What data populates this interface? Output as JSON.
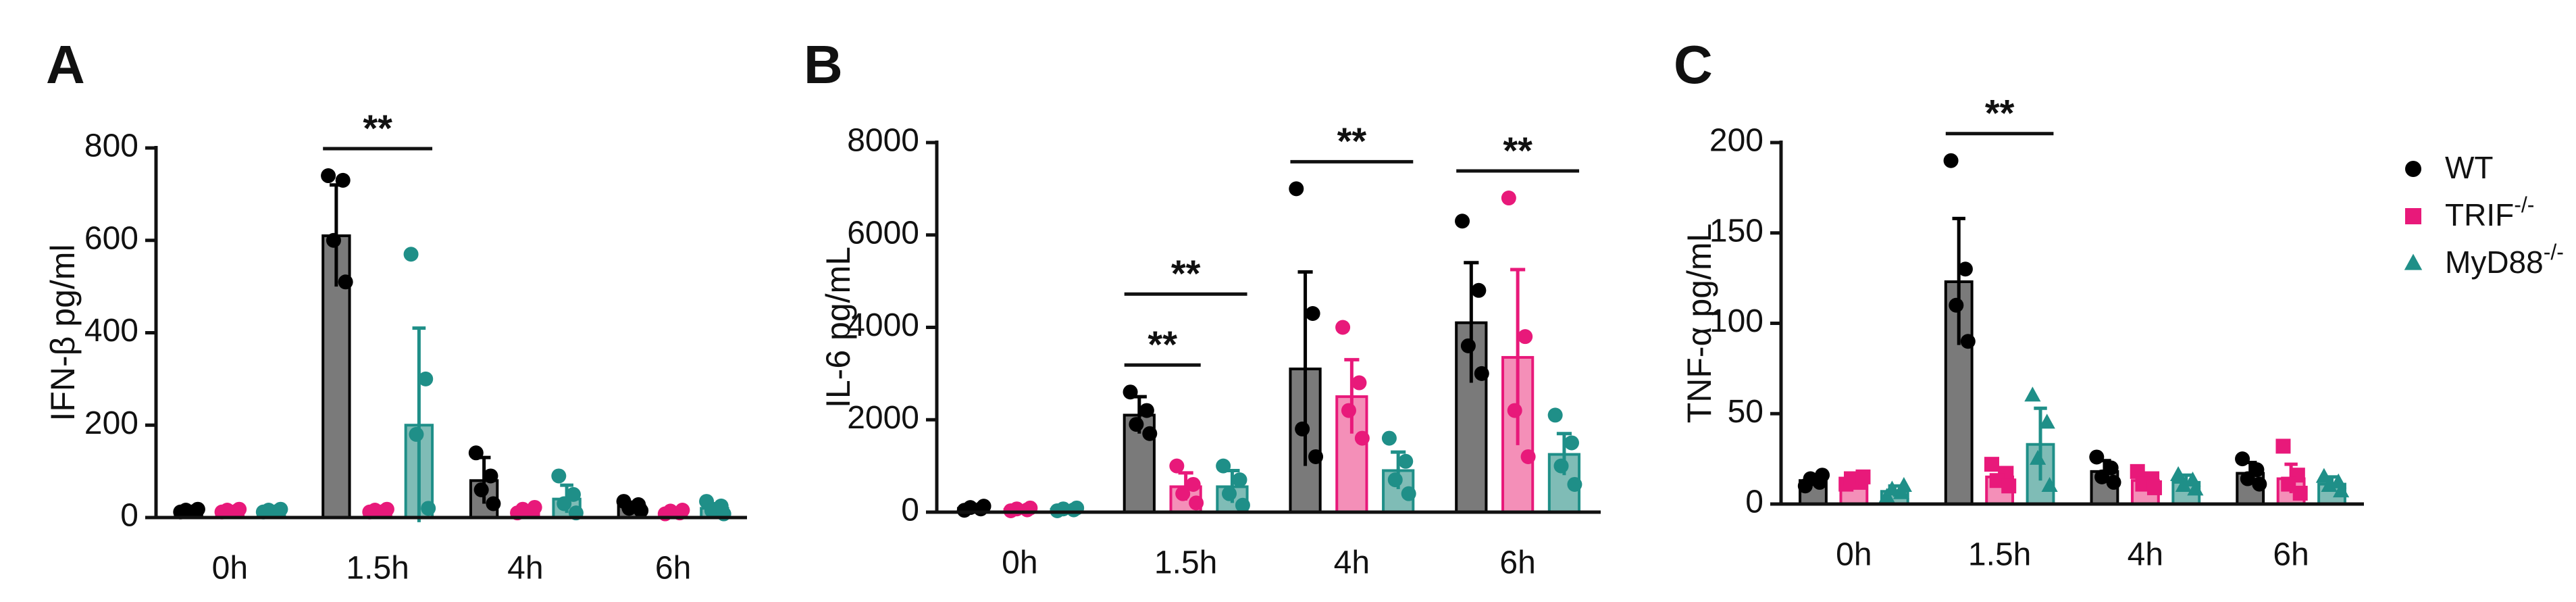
{
  "chart_data": [
    {
      "type": "bar",
      "panel": "A",
      "y_label": "IFN-β  pg/ml",
      "categories": [
        "0h",
        "1.5h",
        "4h",
        "6h"
      ],
      "ylim": [
        0,
        800
      ],
      "yticks": [
        0,
        200,
        400,
        600,
        800
      ],
      "series": [
        {
          "name": "WT",
          "color": "#000000",
          "fill": "#7a7a7a",
          "marker": "circle",
          "values": [
            15,
            610,
            80,
            25
          ],
          "errors": [
            3,
            110,
            50,
            8
          ],
          "points": [
            [
              12,
              14,
              16,
              18
            ],
            [
              740,
              730,
              600,
              510
            ],
            [
              140,
              90,
              60,
              30
            ],
            [
              35,
              28,
              20,
              15
            ]
          ]
        },
        {
          "name": "TRIF-/-",
          "color": "#e8197a",
          "fill": "#f48fb8",
          "marker": "circle",
          "values": [
            15,
            15,
            15,
            12
          ],
          "errors": [
            3,
            3,
            5,
            4
          ],
          "points": [
            [
              12,
              14,
              16,
              18
            ],
            [
              12,
              14,
              16,
              18
            ],
            [
              10,
              14,
              18,
              22
            ],
            [
              8,
              10,
              14,
              16
            ]
          ]
        },
        {
          "name": "MyD88-/-",
          "color": "#1f8f88",
          "fill": "#7fbcb6",
          "marker": "circle",
          "values": [
            15,
            200,
            40,
            20
          ],
          "errors": [
            3,
            210,
            30,
            10
          ],
          "points": [
            [
              12,
              14,
              16,
              18
            ],
            [
              570,
              300,
              180,
              20
            ],
            [
              90,
              50,
              30,
              10
            ],
            [
              35,
              25,
              15,
              8
            ]
          ]
        }
      ],
      "annotations": [
        {
          "text": "**",
          "category": 1,
          "series": [
            0,
            2
          ]
        }
      ]
    },
    {
      "type": "bar",
      "panel": "B",
      "y_label": "IL-6  pg/mL",
      "categories": [
        "0h",
        "1.5h",
        "4h",
        "6h"
      ],
      "ylim": [
        0,
        8000
      ],
      "yticks": [
        0,
        2000,
        4000,
        6000,
        8000
      ],
      "series": [
        {
          "name": "WT",
          "color": "#000000",
          "fill": "#7a7a7a",
          "marker": "circle",
          "values": [
            80,
            2100,
            3100,
            4100
          ],
          "errors": [
            40,
            400,
            2100,
            1300
          ],
          "points": [
            [
              40,
              70,
              100,
              130
            ],
            [
              2600,
              2200,
              1900,
              1700
            ],
            [
              7000,
              4300,
              1800,
              1200
            ],
            [
              6300,
              4800,
              3600,
              3000
            ]
          ]
        },
        {
          "name": "TRIF-/-",
          "color": "#e8197a",
          "fill": "#f48fb8",
          "marker": "circle",
          "values": [
            60,
            550,
            2500,
            3350
          ],
          "errors": [
            30,
            300,
            800,
            1900
          ],
          "points": [
            [
              30,
              50,
              70,
              90
            ],
            [
              1000,
              600,
              400,
              200
            ],
            [
              4000,
              2800,
              2200,
              1600
            ],
            [
              6800,
              3800,
              2200,
              1200
            ]
          ]
        },
        {
          "name": "MyD88-/-",
          "color": "#1f8f88",
          "fill": "#7fbcb6",
          "marker": "circle",
          "values": [
            60,
            550,
            900,
            1250
          ],
          "errors": [
            30,
            350,
            400,
            450
          ],
          "points": [
            [
              30,
              50,
              70,
              90
            ],
            [
              1000,
              700,
              400,
              150
            ],
            [
              1600,
              1100,
              700,
              400
            ],
            [
              2100,
              1500,
              1000,
              600
            ]
          ]
        }
      ],
      "annotations": [
        {
          "text": "**",
          "category": 1,
          "series": [
            0,
            1
          ]
        },
        {
          "text": "**",
          "category": 1,
          "series": [
            0,
            2
          ]
        },
        {
          "text": "**",
          "category": 2,
          "series": [
            0,
            2
          ]
        },
        {
          "text": "**",
          "category": 3,
          "series": [
            0,
            2
          ]
        }
      ]
    },
    {
      "type": "bar",
      "panel": "C",
      "y_label": "TNF-α pg/mL",
      "categories": [
        "0h",
        "1.5h",
        "4h",
        "6h"
      ],
      "ylim": [
        0,
        200
      ],
      "yticks": [
        0,
        50,
        100,
        150,
        200
      ],
      "series": [
        {
          "name": "WT",
          "color": "#000000",
          "fill": "#7a7a7a",
          "marker": "circle",
          "values": [
            13,
            123,
            18,
            17
          ],
          "errors": [
            3,
            35,
            6,
            6
          ],
          "points": [
            [
              10,
              12,
              14,
              16
            ],
            [
              190,
              130,
              110,
              90
            ],
            [
              26,
              20,
              15,
              12
            ],
            [
              25,
              19,
              14,
              11
            ]
          ]
        },
        {
          "name": "TRIF-/-",
          "color": "#e8197a",
          "fill": "#f48fb8",
          "marker": "square",
          "values": [
            13,
            15,
            13,
            14
          ],
          "errors": [
            2,
            5,
            4,
            8
          ],
          "points": [
            [
              11,
              12,
              14,
              15
            ],
            [
              22,
              17,
              13,
              10
            ],
            [
              18,
              14,
              11,
              9
            ],
            [
              32,
              16,
              11,
              6
            ]
          ]
        },
        {
          "name": "MyD88-/-",
          "color": "#1f8f88",
          "fill": "#7fbcb6",
          "marker": "triangle",
          "values": [
            7,
            33,
            12,
            11
          ],
          "errors": [
            3,
            20,
            4,
            4
          ],
          "points": [
            [
              4,
              6,
              8,
              10
            ],
            [
              60,
              45,
              25,
              10
            ],
            [
              16,
              13,
              10,
              8
            ],
            [
              15,
              12,
              10,
              7
            ]
          ]
        }
      ],
      "legend": true,
      "annotations": [
        {
          "text": "**",
          "category": 1,
          "series": [
            0,
            2
          ]
        }
      ]
    }
  ]
}
